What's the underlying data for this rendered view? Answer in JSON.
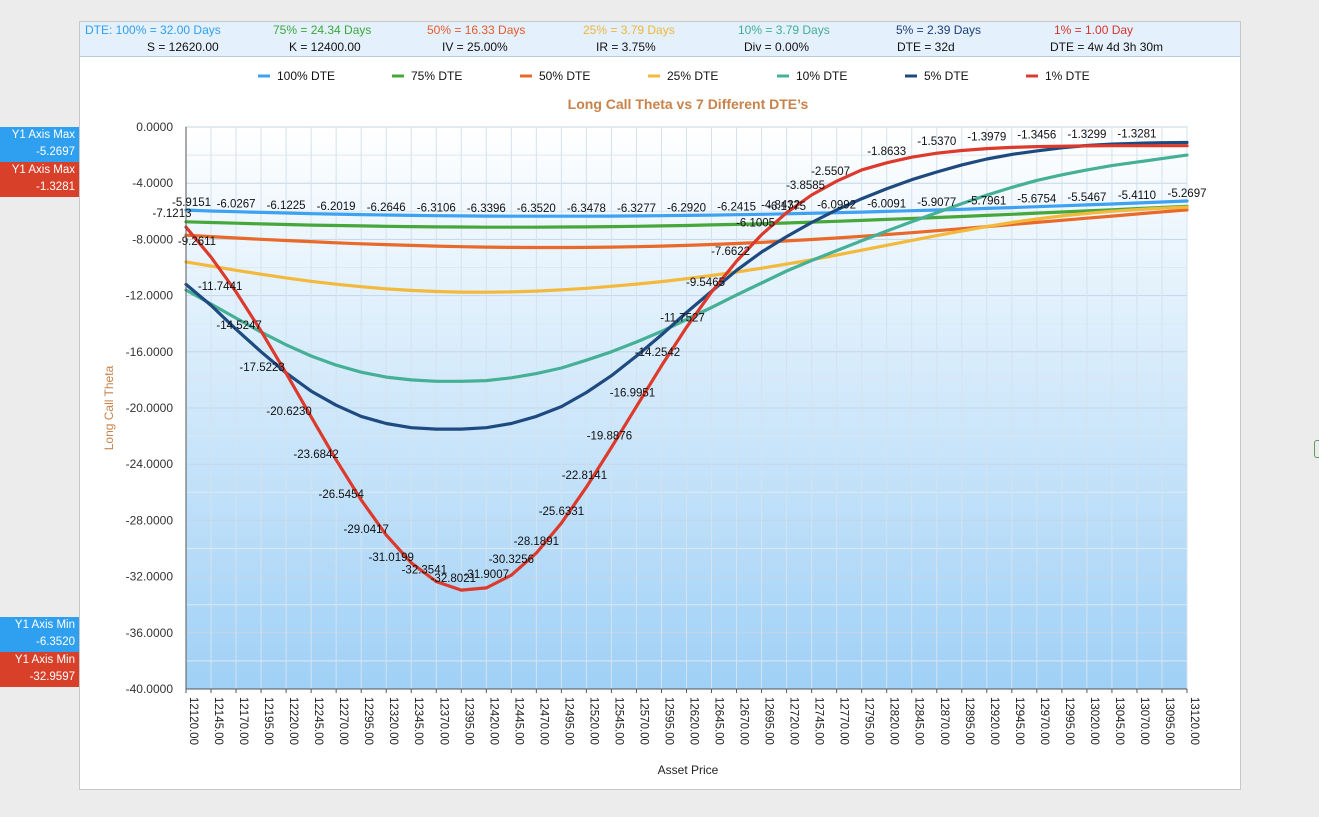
{
  "header": {
    "row1": [
      {
        "text": "DTE: 100% = 32.00 Days",
        "color": "#2f9ff0"
      },
      {
        "text": "75% = 24.34 Days",
        "color": "#3aa83a"
      },
      {
        "text": "50% = 16.33 Days",
        "color": "#e8592a"
      },
      {
        "text": "25% = 3.79 Days",
        "color": "#f0b43c"
      },
      {
        "text": "10% = 3.79 Days",
        "color": "#3fae96"
      },
      {
        "text": "5% = 2.39 Days",
        "color": "#1e3f7a"
      },
      {
        "text": "1% = 1.00 Day",
        "color": "#d8342a"
      }
    ],
    "row2": [
      {
        "text": "S = 12620.00"
      },
      {
        "text": "K = 12400.00"
      },
      {
        "text": "IV = 25.00%"
      },
      {
        "text": "IR = 3.75%"
      },
      {
        "text": "Div = 0.00%"
      },
      {
        "text": "DTE = 32d"
      },
      {
        "text": "DTE = 4w 4d 3h 30m"
      }
    ]
  },
  "side_labels": {
    "blue_max": {
      "title": "Y1 Axis Max",
      "value": "-5.2697",
      "color": "#2f9ff0"
    },
    "red_max": {
      "title": "Y1 Axis Max",
      "value": "-1.3281",
      "color": "#d8402a"
    },
    "blue_min": {
      "title": "Y1 Axis Min",
      "value": "-6.3520",
      "color": "#2f9ff0"
    },
    "red_min": {
      "title": "Y1 Axis Min",
      "value": "-32.9597",
      "color": "#d8402a"
    }
  },
  "chart_data": {
    "type": "line",
    "title": "Long Call Theta vs 7 Different DTE’s",
    "xlabel": "Asset Price",
    "ylabel": "Long Call Theta",
    "xlim": [
      12120,
      13120
    ],
    "ylim": [
      -40,
      0
    ],
    "yticks": [
      "0.0000",
      "-4.0000",
      "-8.0000",
      "-12.0000",
      "-16.0000",
      "-20.0000",
      "-24.0000",
      "-28.0000",
      "-32.0000",
      "-36.0000",
      "-40.0000"
    ],
    "x": [
      12120,
      12145,
      12170,
      12195,
      12220,
      12245,
      12270,
      12295,
      12320,
      12345,
      12370,
      12395,
      12420,
      12445,
      12470,
      12495,
      12520,
      12545,
      12570,
      12595,
      12620,
      12645,
      12670,
      12695,
      12720,
      12745,
      12770,
      12795,
      12820,
      12845,
      12870,
      12895,
      12920,
      12945,
      12970,
      12995,
      13020,
      13045,
      13070,
      13095,
      13120
    ],
    "xticks": [
      "12120.00",
      "12145.00",
      "12170.00",
      "12195.00",
      "12220.00",
      "12245.00",
      "12270.00",
      "12295.00",
      "12320.00",
      "12345.00",
      "12370.00",
      "12395.00",
      "12420.00",
      "12445.00",
      "12470.00",
      "12495.00",
      "12520.00",
      "12545.00",
      "12570.00",
      "12595.00",
      "12620.00",
      "12645.00",
      "12670.00",
      "12695.00",
      "12720.00",
      "12745.00",
      "12770.00",
      "12795.00",
      "12820.00",
      "12845.00",
      "12870.00",
      "12895.00",
      "12920.00",
      "12945.00",
      "12970.00",
      "12995.00",
      "13020.00",
      "13045.00",
      "13070.00",
      "13095.00",
      "13120.00"
    ],
    "grid": true,
    "legend_position": "top",
    "series": [
      {
        "name": "100% DTE",
        "color": "#3ea2f2",
        "values": [
          -5.9151,
          -5.98,
          -6.0267,
          -6.08,
          -6.1225,
          -6.17,
          -6.2019,
          -6.235,
          -6.2646,
          -6.29,
          -6.3106,
          -6.326,
          -6.3396,
          -6.346,
          -6.352,
          -6.352,
          -6.3478,
          -6.34,
          -6.3277,
          -6.31,
          -6.292,
          -6.268,
          -6.2415,
          -6.21,
          -6.1775,
          -6.14,
          -6.0992,
          -6.06,
          -6.0091,
          -5.96,
          -5.9077,
          -5.855,
          -5.7961,
          -5.735,
          -5.6754,
          -5.612,
          -5.5467,
          -5.48,
          -5.411,
          -5.34,
          -5.2697
        ]
      },
      {
        "name": "75% DTE",
        "color": "#46a83a",
        "values": [
          -6.75,
          -6.8,
          -6.85,
          -6.9,
          -6.94,
          -6.98,
          -7.01,
          -7.04,
          -7.07,
          -7.09,
          -7.11,
          -7.12,
          -7.13,
          -7.13,
          -7.13,
          -7.12,
          -7.11,
          -7.09,
          -7.07,
          -7.04,
          -7.01,
          -6.97,
          -6.93,
          -6.88,
          -6.83,
          -6.77,
          -6.71,
          -6.65,
          -6.58,
          -6.51,
          -6.44,
          -6.37,
          -6.29,
          -6.21,
          -6.13,
          -6.05,
          -5.97,
          -5.89,
          -5.81,
          -5.73,
          -5.65
        ]
      },
      {
        "name": "50% DTE",
        "color": "#e8692a",
        "values": [
          -7.7,
          -7.8,
          -7.9,
          -7.99,
          -8.08,
          -8.16,
          -8.24,
          -8.31,
          -8.37,
          -8.43,
          -8.48,
          -8.52,
          -8.55,
          -8.57,
          -8.58,
          -8.58,
          -8.57,
          -8.55,
          -8.52,
          -8.48,
          -8.43,
          -8.36,
          -8.29,
          -8.21,
          -8.11,
          -8.01,
          -7.9,
          -7.78,
          -7.65,
          -7.52,
          -7.38,
          -7.24,
          -7.09,
          -6.94,
          -6.79,
          -6.64,
          -6.49,
          -6.34,
          -6.19,
          -6.04,
          -5.9
        ]
      },
      {
        "name": "25% DTE",
        "color": "#f2b93c",
        "values": [
          -9.6,
          -9.9,
          -10.2,
          -10.48,
          -10.74,
          -10.98,
          -11.19,
          -11.37,
          -11.52,
          -11.63,
          -11.71,
          -11.75,
          -11.76,
          -11.74,
          -11.68,
          -11.59,
          -11.48,
          -11.34,
          -11.18,
          -11.0,
          -10.8,
          -10.57,
          -10.32,
          -10.05,
          -9.76,
          -9.45,
          -9.12,
          -8.77,
          -8.42,
          -8.07,
          -7.73,
          -7.4,
          -7.09,
          -6.8,
          -6.55,
          -6.33,
          -6.15,
          -6.0,
          -5.88,
          -5.78,
          -5.7
        ]
      },
      {
        "name": "10% DTE",
        "color": "#45b095",
        "values": [
          -11.6,
          -12.6,
          -13.6,
          -14.6,
          -15.5,
          -16.3,
          -16.95,
          -17.45,
          -17.8,
          -18.0,
          -18.1,
          -18.1,
          -18.05,
          -17.85,
          -17.55,
          -17.15,
          -16.6,
          -16.0,
          -15.3,
          -14.55,
          -13.7,
          -12.85,
          -11.95,
          -11.1,
          -10.25,
          -9.5,
          -8.8,
          -8.1,
          -7.4,
          -6.75,
          -6.1,
          -5.45,
          -4.85,
          -4.3,
          -3.8,
          -3.4,
          -3.05,
          -2.75,
          -2.5,
          -2.25,
          -2.0
        ]
      },
      {
        "name": "5% DTE",
        "color": "#1e4a80",
        "values": [
          -11.2,
          -12.7,
          -14.4,
          -16.0,
          -17.5,
          -18.8,
          -19.8,
          -20.6,
          -21.1,
          -21.4,
          -21.5,
          -21.5,
          -21.4,
          -21.1,
          -20.6,
          -19.9,
          -18.9,
          -17.7,
          -16.3,
          -14.8,
          -13.2,
          -11.7,
          -10.2,
          -8.9,
          -7.8,
          -6.8,
          -5.9,
          -5.1,
          -4.4,
          -3.75,
          -3.2,
          -2.7,
          -2.28,
          -1.95,
          -1.7,
          -1.48,
          -1.32,
          -1.22,
          -1.16,
          -1.12,
          -1.1
        ]
      },
      {
        "name": "1% DTE",
        "color": "#dc3a2c",
        "values": [
          -7.1213,
          -9.2611,
          -11.7441,
          -14.5247,
          -17.5223,
          -20.623,
          -23.6842,
          -26.5454,
          -29.0417,
          -31.0199,
          -32.3541,
          -32.9597,
          -32.8021,
          -31.9007,
          -30.3256,
          -28.1891,
          -25.6331,
          -22.8141,
          -19.8876,
          -16.9951,
          -14.2542,
          -11.7527,
          -9.5465,
          -7.6622,
          -6.1005,
          -4.8432,
          -3.8585,
          -3.05,
          -2.5507,
          -2.15,
          -1.8633,
          -1.67,
          -1.537,
          -1.45,
          -1.3979,
          -1.37,
          -1.3456,
          -1.33,
          -1.3299,
          -1.33,
          -1.3281
        ]
      }
    ],
    "annotations": [
      {
        "text": "-5.9151"
      },
      {
        "text": "-6.0267"
      },
      {
        "text": "-6.1225"
      },
      {
        "text": "-6.2019"
      },
      {
        "text": "-6.2646"
      },
      {
        "text": "-6.3106"
      },
      {
        "text": "-6.3396"
      },
      {
        "text": "-6.3520"
      },
      {
        "text": "-6.3478"
      },
      {
        "text": "-6.3277"
      },
      {
        "text": "-6.2920"
      },
      {
        "text": "-6.2415"
      },
      {
        "text": "-6.1775"
      },
      {
        "text": "-6.0992"
      },
      {
        "text": "-6.0091"
      },
      {
        "text": "-5.9077"
      },
      {
        "text": "-5.7961"
      },
      {
        "text": "-5.6754"
      },
      {
        "text": "-5.5467"
      },
      {
        "text": "-5.4110"
      },
      {
        "text": "-5.2697"
      },
      {
        "text": "-7.1213"
      },
      {
        "text": "-9.2611"
      },
      {
        "text": "-11.7441"
      },
      {
        "text": "-14.5247"
      },
      {
        "text": "-17.5223"
      },
      {
        "text": "-20.6230"
      },
      {
        "text": "-23.6842"
      },
      {
        "text": "-26.5454"
      },
      {
        "text": "-29.0417"
      },
      {
        "text": "-31.0199"
      },
      {
        "text": "-32.3541"
      },
      {
        "text": "-32.8021"
      },
      {
        "text": "-31.9007"
      },
      {
        "text": "-30.3256"
      },
      {
        "text": "-28.1891"
      },
      {
        "text": "-25.6331"
      },
      {
        "text": "-22.8141"
      },
      {
        "text": "-19.8876"
      },
      {
        "text": "-16.9951"
      },
      {
        "text": "-14.2542"
      },
      {
        "text": "-11.7527"
      },
      {
        "text": "-9.5465"
      },
      {
        "text": "-7.6622"
      },
      {
        "text": "-6.1005"
      },
      {
        "text": "-4.8432"
      },
      {
        "text": "-3.8585"
      },
      {
        "text": "-2.5507"
      },
      {
        "text": "-1.8633"
      },
      {
        "text": "-1.5370"
      },
      {
        "text": "-1.3979"
      },
      {
        "text": "-1.3456"
      },
      {
        "text": "-1.3299"
      },
      {
        "text": "-1.3281"
      }
    ]
  }
}
